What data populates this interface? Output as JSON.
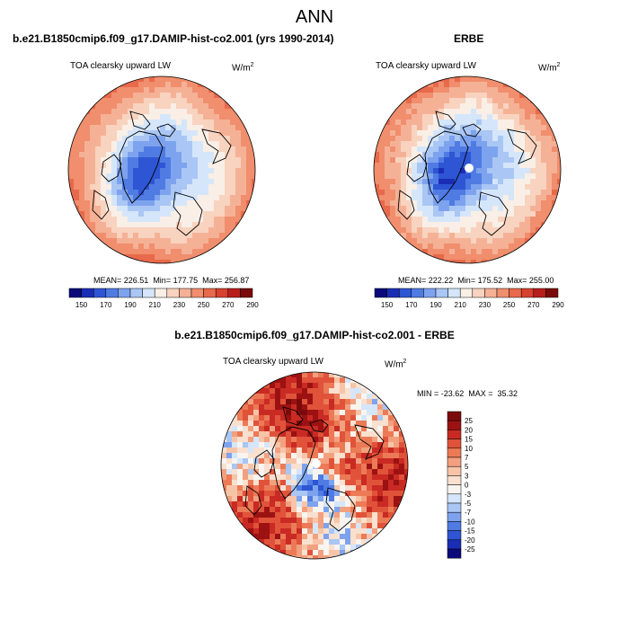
{
  "page": {
    "title": "ANN"
  },
  "colors": {
    "abs_palette": [
      "#0a0a7a",
      "#1a2db5",
      "#2e55d3",
      "#4f7be3",
      "#7ea3ee",
      "#a9c6f4",
      "#d5e6fb",
      "#f9efe6",
      "#f8d3bf",
      "#f5b196",
      "#f08e6d",
      "#e8694b",
      "#d7412f",
      "#b61e1c",
      "#7b0b0b"
    ],
    "diff_palette": [
      "#0a0a7a",
      "#1a2db5",
      "#2e55d3",
      "#4f7be3",
      "#7ea3ee",
      "#a9c6f4",
      "#d5e6fb",
      "#f8f4f0",
      "#f9e0cf",
      "#f8c4a8",
      "#f3a07e",
      "#ec7a56",
      "#e0533a",
      "#c92a23",
      "#9c1212",
      "#7b0b0b"
    ],
    "coastline": "#000000"
  },
  "panels": {
    "model": {
      "heading": "b.e21.B1850cmip6.f09_g17.DAMIP-hist-co2.001 (yrs 1990-2014)",
      "variable": "TOA clearsky upward LW",
      "units_base": "W/m",
      "units_exp": "2",
      "stats": {
        "mean": "MEAN= 226.51",
        "min": "Min= 177.75",
        "max": "Max= 256.87"
      }
    },
    "obs": {
      "heading": "ERBE",
      "variable": "TOA clearsky upward LW",
      "units_base": "W/m",
      "units_exp": "2",
      "stats": {
        "mean": "MEAN= 222.22",
        "min": "Min= 175.52",
        "max": "Max= 255.00"
      }
    },
    "diff": {
      "heading": "b.e21.B1850cmip6.f09_g17.DAMIP-hist-co2.001 - ERBE",
      "variable": "TOA clearsky upward LW",
      "units_base": "W/m",
      "units_exp": "2",
      "stats": "MIN = -23.62  MAX =  35.32"
    }
  },
  "chart_data": [
    {
      "type": "heatmap",
      "projection": "north-polar-stereographic",
      "title": "b.e21.B1850cmip6.f09_g17.DAMIP-hist-co2.001 (yrs 1990-2014)",
      "variable": "TOA clearsky upward LW",
      "units": "W/m2",
      "mean": 226.51,
      "min": 177.75,
      "max": 256.87,
      "levels": [
        150,
        160,
        170,
        180,
        190,
        200,
        210,
        220,
        230,
        240,
        250,
        260,
        270,
        280,
        290
      ],
      "colorbar_tick_labels": [
        "150",
        "170",
        "190",
        "210",
        "230",
        "250",
        "270",
        "290"
      ],
      "colorbar_placement": "bottom"
    },
    {
      "type": "heatmap",
      "projection": "north-polar-stereographic",
      "title": "ERBE",
      "variable": "TOA clearsky upward LW",
      "units": "W/m2",
      "mean": 222.22,
      "min": 175.52,
      "max": 255.0,
      "levels": [
        150,
        160,
        170,
        180,
        190,
        200,
        210,
        220,
        230,
        240,
        250,
        260,
        270,
        280,
        290
      ],
      "colorbar_tick_labels": [
        "150",
        "170",
        "190",
        "210",
        "230",
        "250",
        "270",
        "290"
      ],
      "colorbar_placement": "bottom"
    },
    {
      "type": "heatmap",
      "projection": "north-polar-stereographic",
      "title": "b.e21.B1850cmip6.f09_g17.DAMIP-hist-co2.001 - ERBE",
      "variable": "TOA clearsky upward LW",
      "units": "W/m2",
      "min": -23.62,
      "max": 35.32,
      "levels": [
        -25,
        -20,
        -15,
        -10,
        -7,
        -5,
        -3,
        0,
        3,
        5,
        7,
        10,
        15,
        20,
        25
      ],
      "colorbar_tick_labels": [
        "25",
        "20",
        "15",
        "10",
        "7",
        "5",
        "3",
        "0",
        "-3",
        "-5",
        "-7",
        "-10",
        "-15",
        "-20",
        "-25"
      ],
      "colorbar_placement": "right"
    }
  ]
}
